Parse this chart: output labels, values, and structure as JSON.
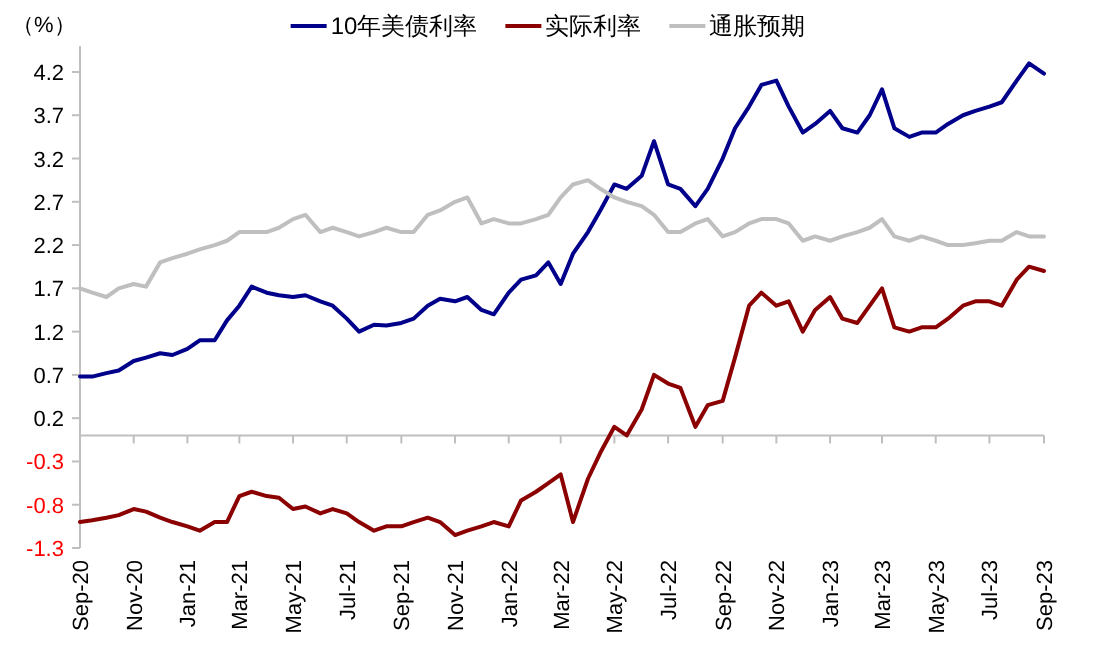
{
  "chart_data": {
    "type": "line",
    "ylabel": "（%）",
    "legend": "top",
    "grid": false,
    "marker": "none",
    "line_style": "solid",
    "xlim": [
      "2020-09-01",
      "2023-09-01"
    ],
    "xticks": [
      {
        "value": "2020-09-01",
        "label": "Sep-20"
      },
      {
        "value": "2020-11-01",
        "label": "Nov-20"
      },
      {
        "value": "2021-01-01",
        "label": "Jan-21"
      },
      {
        "value": "2021-03-01",
        "label": "Mar-21"
      },
      {
        "value": "2021-05-01",
        "label": "May-21"
      },
      {
        "value": "2021-07-01",
        "label": "Jul-21"
      },
      {
        "value": "2021-09-01",
        "label": "Sep-21"
      },
      {
        "value": "2021-11-01",
        "label": "Nov-21"
      },
      {
        "value": "2022-01-01",
        "label": "Jan-22"
      },
      {
        "value": "2022-03-01",
        "label": "Mar-22"
      },
      {
        "value": "2022-05-01",
        "label": "May-22"
      },
      {
        "value": "2022-07-01",
        "label": "Jul-22"
      },
      {
        "value": "2022-09-01",
        "label": "Sep-22"
      },
      {
        "value": "2022-11-01",
        "label": "Nov-22"
      },
      {
        "value": "2023-01-01",
        "label": "Jan-23"
      },
      {
        "value": "2023-03-01",
        "label": "Mar-23"
      },
      {
        "value": "2023-05-01",
        "label": "May-23"
      },
      {
        "value": "2023-07-01",
        "label": "Jul-23"
      },
      {
        "value": "2023-09-01",
        "label": "Sep-23"
      }
    ],
    "ylim": [
      -1.3,
      4.5
    ],
    "yticks": [
      -1.3,
      -0.8,
      -0.3,
      0.2,
      0.7,
      1.2,
      1.7,
      2.2,
      2.7,
      3.2,
      3.7,
      4.2
    ],
    "x": [
      "2020-09-01",
      "2020-09-15",
      "2020-10-01",
      "2020-10-15",
      "2020-11-01",
      "2020-11-15",
      "2020-12-01",
      "2020-12-15",
      "2021-01-01",
      "2021-01-15",
      "2021-02-01",
      "2021-02-15",
      "2021-03-01",
      "2021-03-15",
      "2021-04-01",
      "2021-04-15",
      "2021-05-01",
      "2021-05-15",
      "2021-06-01",
      "2021-06-15",
      "2021-07-01",
      "2021-07-15",
      "2021-08-01",
      "2021-08-15",
      "2021-09-01",
      "2021-09-15",
      "2021-10-01",
      "2021-10-15",
      "2021-11-01",
      "2021-11-15",
      "2021-12-01",
      "2021-12-15",
      "2022-01-01",
      "2022-01-15",
      "2022-02-01",
      "2022-02-15",
      "2022-03-01",
      "2022-03-15",
      "2022-04-01",
      "2022-04-15",
      "2022-05-01",
      "2022-05-15",
      "2022-06-01",
      "2022-06-15",
      "2022-07-01",
      "2022-07-15",
      "2022-08-01",
      "2022-08-15",
      "2022-09-01",
      "2022-09-15",
      "2022-10-01",
      "2022-10-15",
      "2022-11-01",
      "2022-11-15",
      "2022-12-01",
      "2022-12-15",
      "2023-01-01",
      "2023-01-15",
      "2023-02-01",
      "2023-02-15",
      "2023-03-01",
      "2023-03-15",
      "2023-04-01",
      "2023-04-15",
      "2023-05-01",
      "2023-05-15",
      "2023-06-01",
      "2023-06-15",
      "2023-07-01",
      "2023-07-15",
      "2023-08-01",
      "2023-08-15",
      "2023-09-01"
    ],
    "series": [
      {
        "name": "10年美债利率",
        "color": "#00008b",
        "values": [
          0.68,
          0.68,
          0.72,
          0.75,
          0.86,
          0.9,
          0.95,
          0.93,
          1.0,
          1.1,
          1.1,
          1.33,
          1.5,
          1.72,
          1.65,
          1.62,
          1.6,
          1.62,
          1.55,
          1.5,
          1.35,
          1.2,
          1.28,
          1.27,
          1.3,
          1.35,
          1.5,
          1.58,
          1.55,
          1.6,
          1.45,
          1.4,
          1.65,
          1.8,
          1.85,
          2.0,
          1.75,
          2.1,
          2.35,
          2.6,
          2.9,
          2.85,
          3.0,
          3.4,
          2.9,
          2.85,
          2.65,
          2.85,
          3.2,
          3.55,
          3.8,
          4.05,
          4.1,
          3.8,
          3.5,
          3.6,
          3.75,
          3.55,
          3.5,
          3.7,
          4.0,
          3.55,
          3.45,
          3.5,
          3.5,
          3.6,
          3.7,
          3.75,
          3.8,
          3.85,
          4.1,
          4.3,
          4.18
        ]
      },
      {
        "name": "实际利率",
        "color": "#8b0000",
        "values": [
          -1.0,
          -0.98,
          -0.95,
          -0.92,
          -0.85,
          -0.88,
          -0.95,
          -1.0,
          -1.05,
          -1.1,
          -1.0,
          -1.0,
          -0.7,
          -0.65,
          -0.7,
          -0.72,
          -0.85,
          -0.82,
          -0.9,
          -0.85,
          -0.9,
          -1.0,
          -1.1,
          -1.05,
          -1.05,
          -1.0,
          -0.95,
          -1.0,
          -1.15,
          -1.1,
          -1.05,
          -1.0,
          -1.05,
          -0.75,
          -0.65,
          -0.55,
          -0.45,
          -1.0,
          -0.5,
          -0.2,
          0.1,
          0.0,
          0.3,
          0.7,
          0.6,
          0.55,
          0.1,
          0.35,
          0.4,
          0.9,
          1.5,
          1.65,
          1.5,
          1.55,
          1.2,
          1.45,
          1.6,
          1.35,
          1.3,
          1.5,
          1.7,
          1.25,
          1.2,
          1.25,
          1.25,
          1.35,
          1.5,
          1.55,
          1.55,
          1.5,
          1.8,
          1.95,
          1.9
        ]
      },
      {
        "name": "通胀预期",
        "color": "#bfbfbf",
        "values": [
          1.7,
          1.65,
          1.6,
          1.7,
          1.75,
          1.72,
          2.0,
          2.05,
          2.1,
          2.15,
          2.2,
          2.25,
          2.35,
          2.35,
          2.35,
          2.4,
          2.5,
          2.55,
          2.35,
          2.4,
          2.35,
          2.3,
          2.35,
          2.4,
          2.35,
          2.35,
          2.55,
          2.6,
          2.7,
          2.75,
          2.45,
          2.5,
          2.45,
          2.45,
          2.5,
          2.55,
          2.75,
          2.9,
          2.95,
          2.85,
          2.75,
          2.7,
          2.65,
          2.55,
          2.35,
          2.35,
          2.45,
          2.5,
          2.3,
          2.35,
          2.45,
          2.5,
          2.5,
          2.45,
          2.25,
          2.3,
          2.25,
          2.3,
          2.35,
          2.4,
          2.5,
          2.3,
          2.25,
          2.3,
          2.25,
          2.2,
          2.2,
          2.22,
          2.25,
          2.25,
          2.35,
          2.3,
          2.3
        ]
      }
    ]
  }
}
